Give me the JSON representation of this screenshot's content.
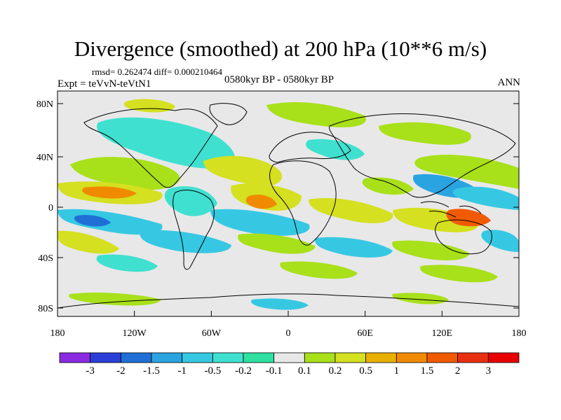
{
  "title": "Divergence (smoothed) at 200 hPa (10**6 m/s)",
  "stats": "rmsd= 0.262474 diff= 0.000210464",
  "experiment": "Expt = teVvN-teVtN1",
  "period": "0580kyr BP - 0580kyr BP",
  "season": "ANN",
  "lat_ticks": [
    "80N",
    "40N",
    "0",
    "40S",
    "80S"
  ],
  "lon_ticks": [
    "180",
    "120W",
    "60W",
    "0",
    "60E",
    "120E",
    "180"
  ],
  "colorbar": {
    "labels": [
      "-3",
      "-2",
      "-1.5",
      "-1",
      "-0.5",
      "-0.2",
      "-0.1",
      "0.1",
      "0.2",
      "0.5",
      "1",
      "1.5",
      "2",
      "3"
    ],
    "colors": [
      "#8a2be2",
      "#2b3fd8",
      "#1f6fd6",
      "#2aa4e0",
      "#36c8e3",
      "#40e0d0",
      "#2fe0a0",
      "#e8e8e8",
      "#a8e01a",
      "#d4e020",
      "#e8b000",
      "#f08a00",
      "#f05a00",
      "#e83010",
      "#e80000"
    ]
  },
  "colors": {
    "background": "#e8e8e8",
    "coast": "#000000"
  }
}
